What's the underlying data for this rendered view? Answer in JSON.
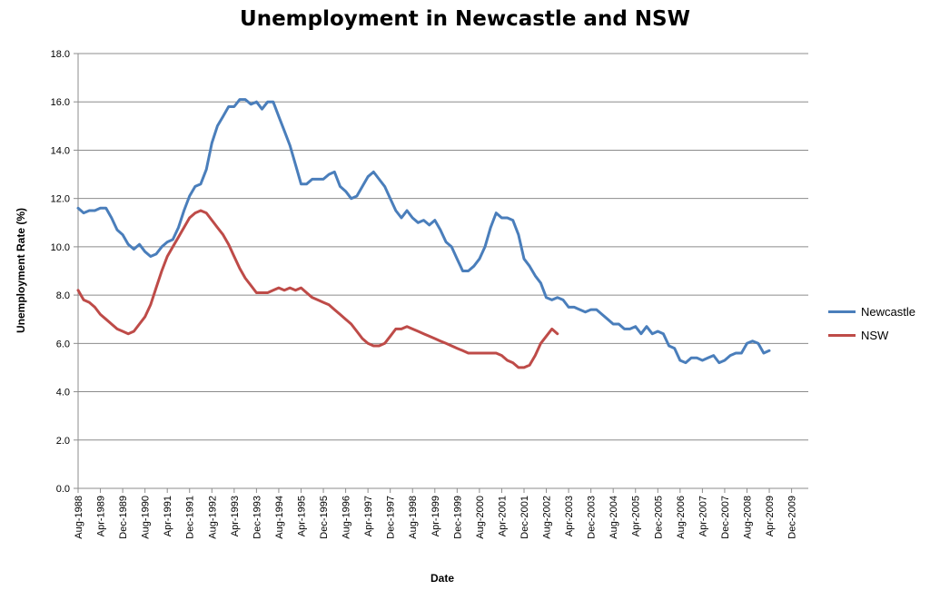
{
  "chart_data": {
    "type": "line",
    "title": "Unemployment in Newcastle and NSW",
    "xlabel": "Date",
    "ylabel": "Unemployment Rate (%)",
    "ylim": [
      0,
      18
    ],
    "yticks": [
      "0.0",
      "2.0",
      "4.0",
      "6.0",
      "8.0",
      "10.0",
      "12.0",
      "14.0",
      "16.0",
      "18.0"
    ],
    "xtick_labels": [
      "Aug-1988",
      "Apr-1989",
      "Dec-1989",
      "Aug-1990",
      "Apr-1991",
      "Dec-1991",
      "Aug-1992",
      "Apr-1993",
      "Dec-1993",
      "Aug-1994",
      "Apr-1995",
      "Dec-1995",
      "Aug-1996",
      "Apr-1997",
      "Dec-1997",
      "Aug-1998",
      "Apr-1999",
      "Dec-1999",
      "Aug-2000",
      "Apr-2001",
      "Dec-2001",
      "Aug-2002",
      "Apr-2003",
      "Dec-2003",
      "Aug-2004",
      "Apr-2005",
      "Dec-2005",
      "Aug-2006",
      "Apr-2007",
      "Dec-2007",
      "Aug-2008",
      "Apr-2009",
      "Dec-2009"
    ],
    "x_start": "Aug-1988",
    "x_end": "Jun-2010",
    "grid": "horizontal",
    "legend_position": "right",
    "series": [
      {
        "name": "Newcastle",
        "color": "#4a7ebb",
        "points": [
          [
            "Aug-1988",
            11.6
          ],
          [
            "Oct-1988",
            11.4
          ],
          [
            "Dec-1988",
            11.5
          ],
          [
            "Feb-1989",
            11.5
          ],
          [
            "Apr-1989",
            11.6
          ],
          [
            "Jun-1989",
            11.6
          ],
          [
            "Aug-1989",
            11.2
          ],
          [
            "Oct-1989",
            10.7
          ],
          [
            "Dec-1989",
            10.5
          ],
          [
            "Feb-1990",
            10.1
          ],
          [
            "Apr-1990",
            9.9
          ],
          [
            "Jun-1990",
            10.1
          ],
          [
            "Aug-1990",
            9.8
          ],
          [
            "Oct-1990",
            9.6
          ],
          [
            "Dec-1990",
            9.7
          ],
          [
            "Feb-1991",
            10.0
          ],
          [
            "Apr-1991",
            10.2
          ],
          [
            "Jun-1991",
            10.3
          ],
          [
            "Aug-1991",
            10.8
          ],
          [
            "Oct-1991",
            11.5
          ],
          [
            "Dec-1991",
            12.1
          ],
          [
            "Feb-1992",
            12.5
          ],
          [
            "Apr-1992",
            12.6
          ],
          [
            "Jun-1992",
            13.2
          ],
          [
            "Aug-1992",
            14.3
          ],
          [
            "Oct-1992",
            15.0
          ],
          [
            "Dec-1992",
            15.4
          ],
          [
            "Feb-1993",
            15.8
          ],
          [
            "Apr-1993",
            15.8
          ],
          [
            "Jun-1993",
            16.1
          ],
          [
            "Aug-1993",
            16.1
          ],
          [
            "Oct-1993",
            15.9
          ],
          [
            "Dec-1993",
            16.0
          ],
          [
            "Feb-1994",
            15.7
          ],
          [
            "Apr-1994",
            16.0
          ],
          [
            "Jun-1994",
            16.0
          ],
          [
            "Aug-1994",
            15.4
          ],
          [
            "Oct-1994",
            14.8
          ],
          [
            "Dec-1994",
            14.2
          ],
          [
            "Feb-1995",
            13.4
          ],
          [
            "Apr-1995",
            12.6
          ],
          [
            "Jun-1995",
            12.6
          ],
          [
            "Aug-1995",
            12.8
          ],
          [
            "Oct-1995",
            12.8
          ],
          [
            "Dec-1995",
            12.8
          ],
          [
            "Feb-1996",
            13.0
          ],
          [
            "Apr-1996",
            13.1
          ],
          [
            "Jun-1996",
            12.5
          ],
          [
            "Aug-1996",
            12.3
          ],
          [
            "Oct-1996",
            12.0
          ],
          [
            "Dec-1996",
            12.1
          ],
          [
            "Feb-1997",
            12.5
          ],
          [
            "Apr-1997",
            12.9
          ],
          [
            "Jun-1997",
            13.1
          ],
          [
            "Aug-1997",
            12.8
          ],
          [
            "Oct-1997",
            12.5
          ],
          [
            "Dec-1997",
            12.0
          ],
          [
            "Feb-1998",
            11.5
          ],
          [
            "Apr-1998",
            11.2
          ],
          [
            "Jun-1998",
            11.5
          ],
          [
            "Aug-1998",
            11.2
          ],
          [
            "Oct-1998",
            11.0
          ],
          [
            "Dec-1998",
            11.1
          ],
          [
            "Feb-1999",
            10.9
          ],
          [
            "Apr-1999",
            11.1
          ],
          [
            "Jun-1999",
            10.7
          ],
          [
            "Aug-1999",
            10.2
          ],
          [
            "Oct-1999",
            10.0
          ],
          [
            "Dec-1999",
            9.5
          ],
          [
            "Feb-2000",
            9.0
          ],
          [
            "Apr-2000",
            9.0
          ],
          [
            "Jun-2000",
            9.2
          ],
          [
            "Aug-2000",
            9.5
          ],
          [
            "Oct-2000",
            10.0
          ],
          [
            "Dec-2000",
            10.8
          ],
          [
            "Feb-2001",
            11.4
          ],
          [
            "Apr-2001",
            11.2
          ],
          [
            "Jun-2001",
            11.2
          ],
          [
            "Aug-2001",
            11.1
          ],
          [
            "Oct-2001",
            10.5
          ],
          [
            "Dec-2001",
            9.5
          ],
          [
            "Feb-2002",
            9.2
          ],
          [
            "Apr-2002",
            8.8
          ],
          [
            "Jun-2002",
            8.5
          ],
          [
            "Aug-2002",
            7.9
          ],
          [
            "Oct-2002",
            7.8
          ],
          [
            "Dec-2002",
            7.9
          ],
          [
            "Feb-2003",
            7.8
          ],
          [
            "Apr-2003",
            7.5
          ],
          [
            "Jun-2003",
            7.5
          ],
          [
            "Aug-2003",
            7.4
          ],
          [
            "Oct-2003",
            7.3
          ],
          [
            "Dec-2003",
            7.4
          ],
          [
            "Feb-2004",
            7.4
          ],
          [
            "Apr-2004",
            7.2
          ],
          [
            "Jun-2004",
            7.0
          ],
          [
            "Aug-2004",
            6.8
          ],
          [
            "Oct-2004",
            6.8
          ],
          [
            "Dec-2004",
            6.6
          ],
          [
            "Feb-2005",
            6.6
          ],
          [
            "Apr-2005",
            6.7
          ],
          [
            "Jun-2005",
            6.4
          ],
          [
            "Aug-2005",
            6.7
          ],
          [
            "Oct-2005",
            6.4
          ],
          [
            "Dec-2005",
            6.5
          ],
          [
            "Feb-2006",
            6.4
          ],
          [
            "Apr-2006",
            5.9
          ],
          [
            "Jun-2006",
            5.8
          ],
          [
            "Aug-2006",
            5.3
          ],
          [
            "Oct-2006",
            5.2
          ],
          [
            "Dec-2006",
            5.4
          ],
          [
            "Feb-2007",
            5.4
          ],
          [
            "Apr-2007",
            5.3
          ],
          [
            "Jun-2007",
            5.4
          ],
          [
            "Aug-2007",
            5.5
          ],
          [
            "Oct-2007",
            5.2
          ],
          [
            "Dec-2007",
            5.3
          ],
          [
            "Feb-2008",
            5.5
          ],
          [
            "Apr-2008",
            5.6
          ],
          [
            "Jun-2008",
            5.6
          ],
          [
            "Aug-2008",
            6.0
          ],
          [
            "Oct-2008",
            6.1
          ],
          [
            "Dec-2008",
            6.0
          ],
          [
            "Feb-2009",
            5.6
          ],
          [
            "Apr-2009",
            5.7
          ]
        ]
      },
      {
        "name": "NSW",
        "color": "#be4b48",
        "points": [
          [
            "Aug-1988",
            8.2
          ],
          [
            "Oct-1988",
            7.8
          ],
          [
            "Dec-1988",
            7.7
          ],
          [
            "Feb-1989",
            7.5
          ],
          [
            "Apr-1989",
            7.2
          ],
          [
            "Jun-1989",
            7.0
          ],
          [
            "Aug-1989",
            6.8
          ],
          [
            "Oct-1989",
            6.6
          ],
          [
            "Dec-1989",
            6.5
          ],
          [
            "Feb-1990",
            6.4
          ],
          [
            "Apr-1990",
            6.5
          ],
          [
            "Jun-1990",
            6.8
          ],
          [
            "Aug-1990",
            7.1
          ],
          [
            "Oct-1990",
            7.6
          ],
          [
            "Dec-1990",
            8.3
          ],
          [
            "Feb-1991",
            9.0
          ],
          [
            "Apr-1991",
            9.6
          ],
          [
            "Jun-1991",
            10.0
          ],
          [
            "Aug-1991",
            10.4
          ],
          [
            "Oct-1991",
            10.8
          ],
          [
            "Dec-1991",
            11.2
          ],
          [
            "Feb-1992",
            11.4
          ],
          [
            "Apr-1992",
            11.5
          ],
          [
            "Jun-1992",
            11.4
          ],
          [
            "Aug-1992",
            11.1
          ],
          [
            "Oct-1992",
            10.8
          ],
          [
            "Dec-1992",
            10.5
          ],
          [
            "Feb-1993",
            10.1
          ],
          [
            "Apr-1993",
            9.6
          ],
          [
            "Jun-1993",
            9.1
          ],
          [
            "Aug-1993",
            8.7
          ],
          [
            "Oct-1993",
            8.4
          ],
          [
            "Dec-1993",
            8.1
          ],
          [
            "Feb-1994",
            8.1
          ],
          [
            "Apr-1994",
            8.1
          ],
          [
            "Jun-1994",
            8.2
          ],
          [
            "Aug-1994",
            8.3
          ],
          [
            "Oct-1994",
            8.2
          ],
          [
            "Dec-1994",
            8.3
          ],
          [
            "Feb-1995",
            8.2
          ],
          [
            "Apr-1995",
            8.3
          ],
          [
            "Jun-1995",
            8.1
          ],
          [
            "Aug-1995",
            7.9
          ],
          [
            "Oct-1995",
            7.8
          ],
          [
            "Dec-1995",
            7.7
          ],
          [
            "Feb-1996",
            7.6
          ],
          [
            "Apr-1996",
            7.4
          ],
          [
            "Jun-1996",
            7.2
          ],
          [
            "Aug-1996",
            7.0
          ],
          [
            "Oct-1996",
            6.8
          ],
          [
            "Dec-1996",
            6.5
          ],
          [
            "Feb-1997",
            6.2
          ],
          [
            "Apr-1997",
            6.0
          ],
          [
            "Jun-1997",
            5.9
          ],
          [
            "Aug-1997",
            5.9
          ],
          [
            "Oct-1997",
            6.0
          ],
          [
            "Dec-1997",
            6.3
          ],
          [
            "Feb-1998",
            6.6
          ],
          [
            "Apr-1998",
            6.6
          ],
          [
            "Jun-1998",
            6.7
          ],
          [
            "Aug-1998",
            6.6
          ],
          [
            "Oct-1998",
            6.5
          ],
          [
            "Dec-1998",
            6.4
          ],
          [
            "Feb-1999",
            6.3
          ],
          [
            "Apr-1999",
            6.2
          ],
          [
            "Jun-1999",
            6.1
          ],
          [
            "Aug-1999",
            6.0
          ],
          [
            "Oct-1999",
            5.9
          ],
          [
            "Dec-1999",
            5.8
          ],
          [
            "Feb-2000",
            5.7
          ],
          [
            "Apr-2000",
            5.6
          ],
          [
            "Jun-2000",
            5.6
          ],
          [
            "Aug-2000",
            5.6
          ],
          [
            "Oct-2000",
            5.6
          ],
          [
            "Dec-2000",
            5.6
          ],
          [
            "Feb-2001",
            5.6
          ],
          [
            "Apr-2001",
            5.5
          ],
          [
            "Jun-2001",
            5.3
          ],
          [
            "Aug-2001",
            5.2
          ],
          [
            "Oct-2001",
            5.0
          ],
          [
            "Dec-2001",
            5.0
          ],
          [
            "Feb-2002",
            5.1
          ],
          [
            "Apr-2002",
            5.5
          ],
          [
            "Jun-2002",
            6.0
          ],
          [
            "Aug-2002",
            6.3
          ],
          [
            "Oct-2002",
            6.6
          ],
          [
            "Dec-2002",
            6.4
          ]
        ]
      }
    ]
  },
  "legend": {
    "items": [
      {
        "label": "Newcastle",
        "color": "#4a7ebb"
      },
      {
        "label": "NSW",
        "color": "#be4b48"
      }
    ]
  }
}
